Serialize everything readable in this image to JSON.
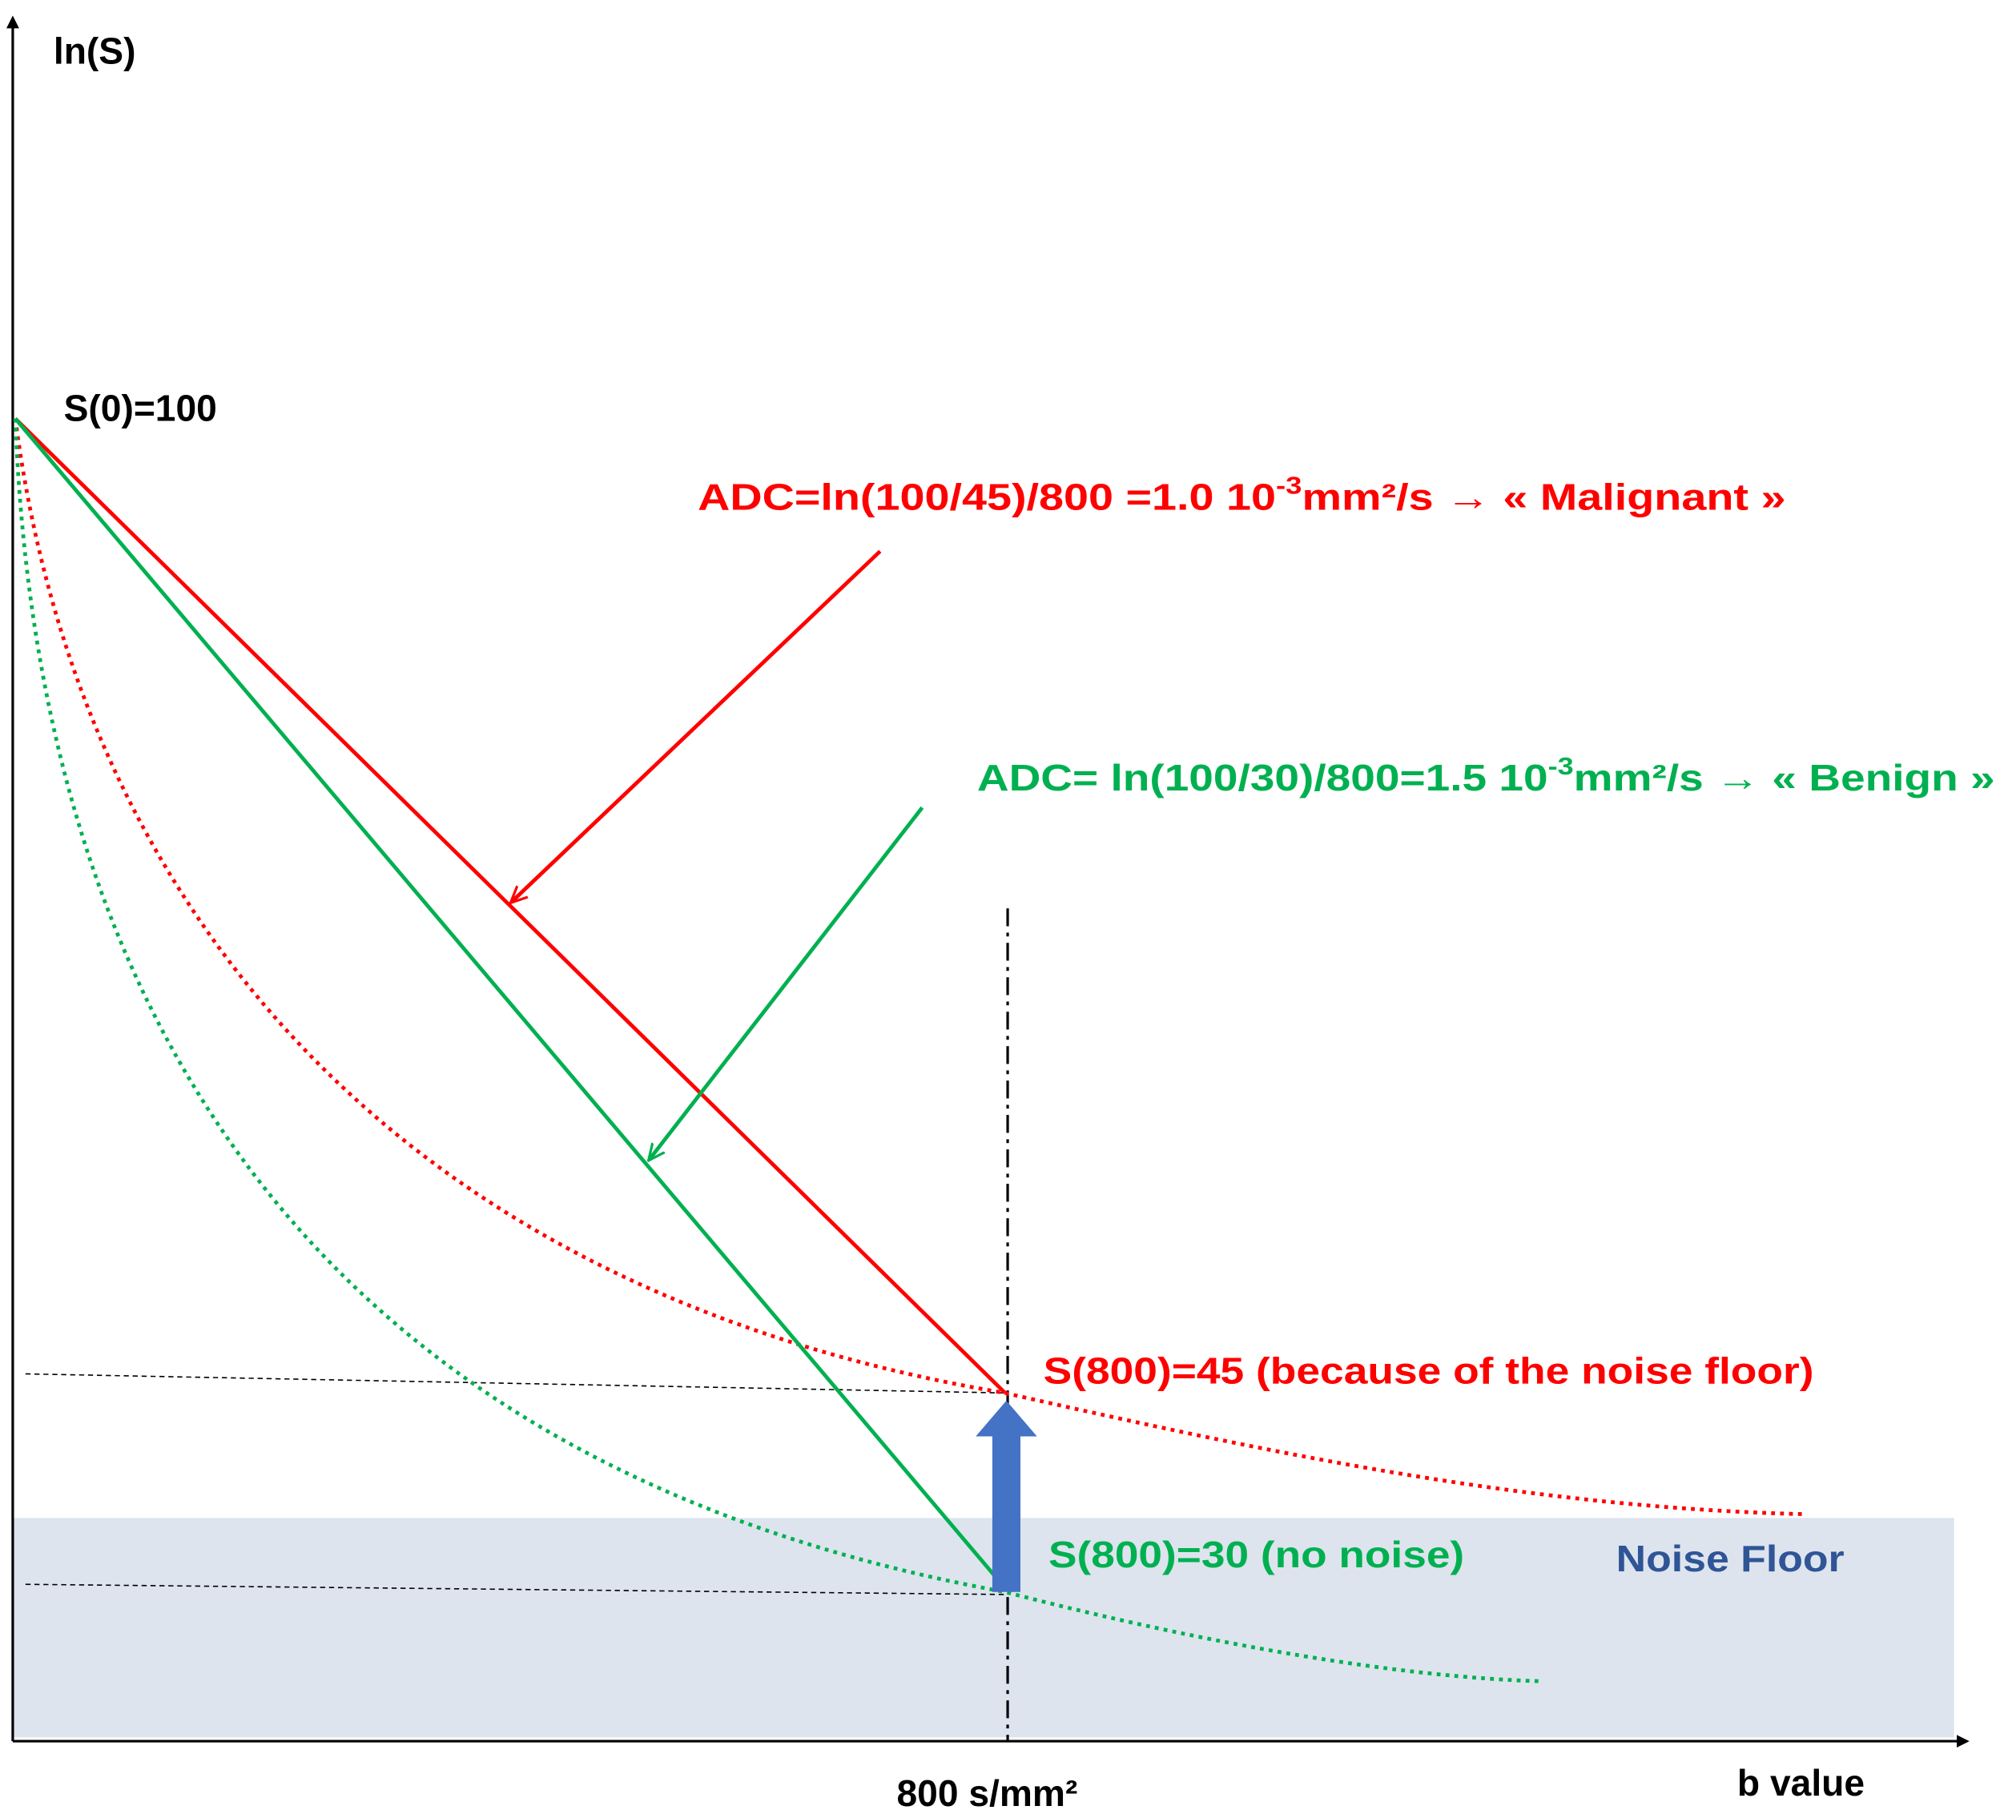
{
  "axes": {
    "y_label": "ln(S)",
    "x_label": "b value",
    "x_marker": "800 s/mm²"
  },
  "labels": {
    "s0": "S(0)=100",
    "malignant": {
      "prefix": "ADC=ln(100/45)/800 =1.0 10",
      "exponent": "-3",
      "suffix": "mm²/s → « Malignant »"
    },
    "benign": {
      "prefix": "ADC= ln(100/30)/800=1.5 10",
      "exponent": "-3",
      "suffix": "mm²/s → « Benign »"
    },
    "s800_noise": "S(800)=45 (because of the noise floor)",
    "s800_true": "S(800)=30 (no noise)",
    "noise_floor": "Noise Floor"
  }
}
